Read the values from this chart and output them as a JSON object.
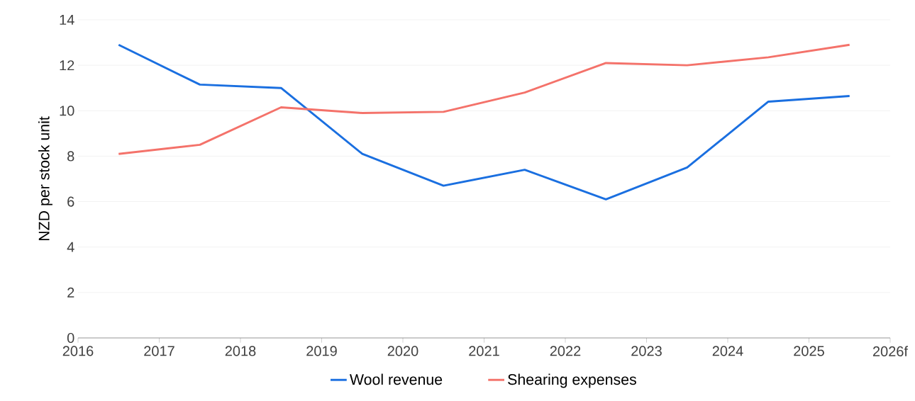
{
  "chart_data": {
    "type": "line",
    "ylabel": "NZD per stock unit",
    "x": [
      2016.5,
      2017.5,
      2018.5,
      2019.5,
      2020.5,
      2021.5,
      2022.5,
      2023.5,
      2024.5,
      2025.5
    ],
    "series": [
      {
        "name": "Wool revenue",
        "color": "#1a6fe0",
        "values": [
          12.9,
          11.15,
          11.0,
          8.1,
          6.7,
          7.4,
          6.1,
          7.5,
          10.4,
          10.65
        ]
      },
      {
        "name": "Shearing expenses",
        "color": "#f4726a",
        "values": [
          8.1,
          8.5,
          10.15,
          9.9,
          9.95,
          10.8,
          12.1,
          12.0,
          12.35,
          12.9
        ]
      }
    ],
    "xlim": [
      2016,
      2026
    ],
    "xticks": [
      2016,
      2017,
      2018,
      2019,
      2020,
      2021,
      2022,
      2023,
      2024,
      2025,
      {
        "value": 2026,
        "label": "2026f"
      }
    ],
    "ylim": [
      0,
      14
    ],
    "yticks": [
      0,
      2,
      4,
      6,
      8,
      10,
      12,
      14
    ],
    "grid": "y",
    "legend": "bottom",
    "marker": "none",
    "line_style": "solid"
  }
}
